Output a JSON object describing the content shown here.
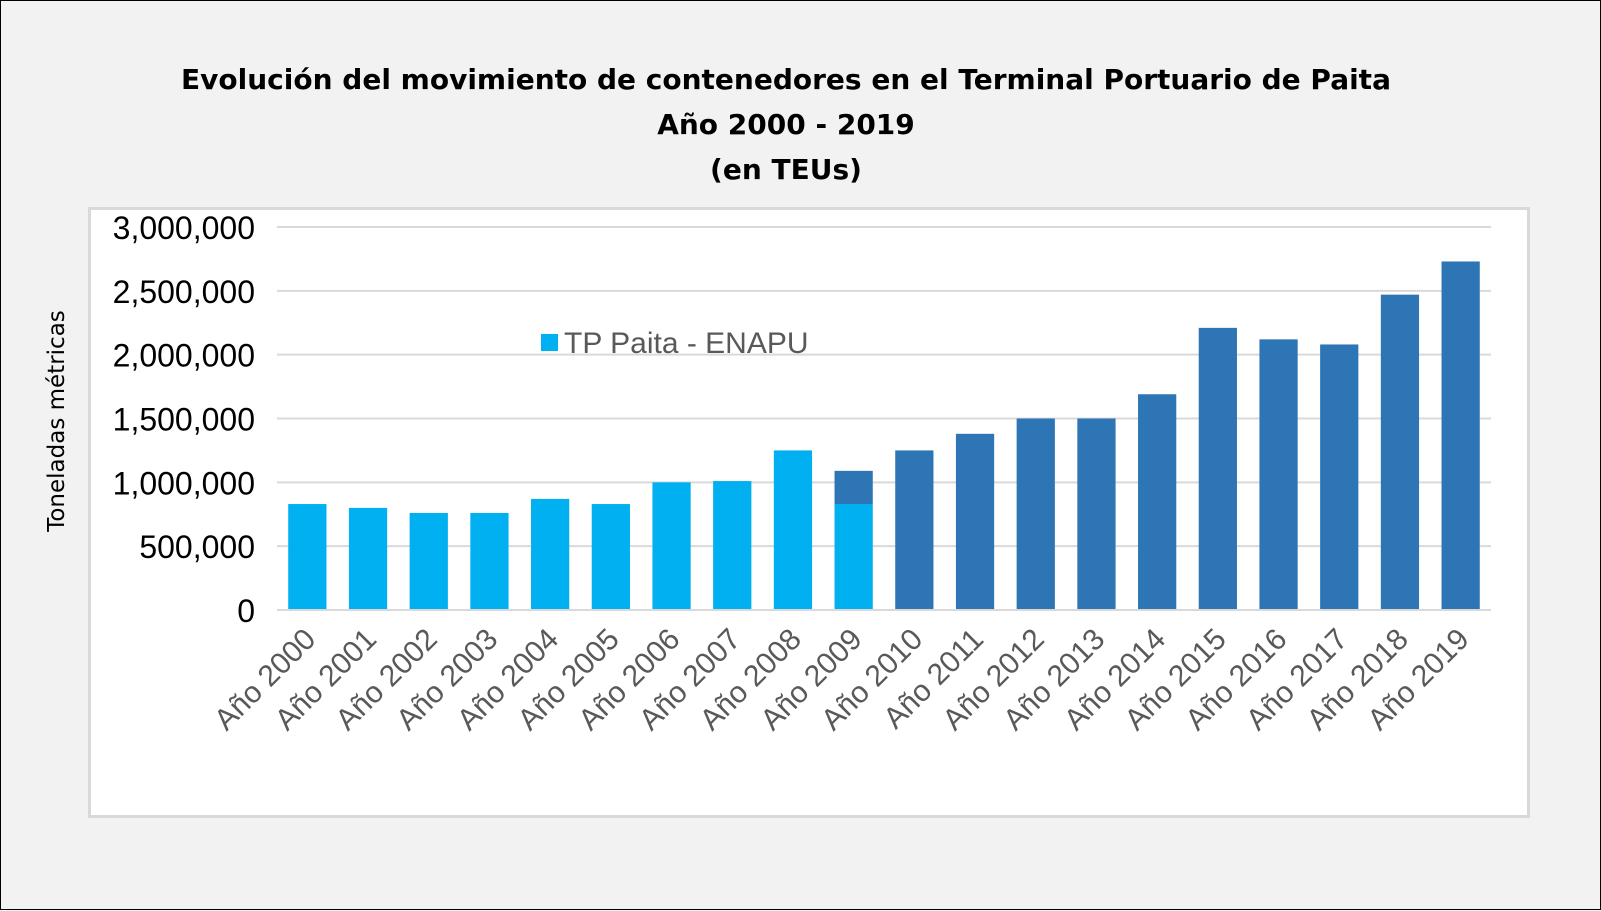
{
  "chart_data": {
    "type": "bar",
    "title_lines": [
      "Evolución del movimiento de contenedores en el Terminal Portuario de Paita",
      "Año 2000 - 2019",
      "(en TEUs)"
    ],
    "ylabel": "Toneladas métricas",
    "xlabel": "",
    "ylim": [
      0,
      3000000
    ],
    "yticks": [
      0,
      500000,
      1000000,
      1500000,
      2000000,
      2500000,
      3000000
    ],
    "ytick_labels": [
      "0",
      "500,000",
      "1,000,000",
      "1,500,000",
      "2,000,000",
      "2,500,000",
      "3,000,000"
    ],
    "grid": true,
    "legend": {
      "position": "top-left",
      "entries": [
        "TP Paita - ENAPU"
      ]
    },
    "categories": [
      "Año 2000",
      "Año 2001",
      "Año 2002",
      "Año 2003",
      "Año 2004",
      "Año 2005",
      "Año 2006",
      "Año 2007",
      "Año 2008",
      "Año 2009",
      "Año 2010",
      "Año 2011",
      "Año 2012",
      "Año 2013",
      "Año 2014",
      "Año 2015",
      "Año 2016",
      "Año 2017",
      "Año 2018",
      "Año 2019"
    ],
    "series": [
      {
        "name": "TP Paita - ENAPU",
        "color": "#00b0f0",
        "values": [
          830000,
          800000,
          760000,
          760000,
          870000,
          830000,
          1000000,
          1010000,
          1250000,
          830000,
          null,
          null,
          null,
          null,
          null,
          null,
          null,
          null,
          null,
          null
        ]
      },
      {
        "color": "#2e75b6",
        "values": [
          null,
          null,
          null,
          null,
          null,
          null,
          null,
          null,
          null,
          260000,
          1250000,
          1380000,
          1500000,
          1500000,
          1690000,
          2210000,
          2120000,
          2080000,
          2470000,
          2730000
        ]
      }
    ]
  }
}
